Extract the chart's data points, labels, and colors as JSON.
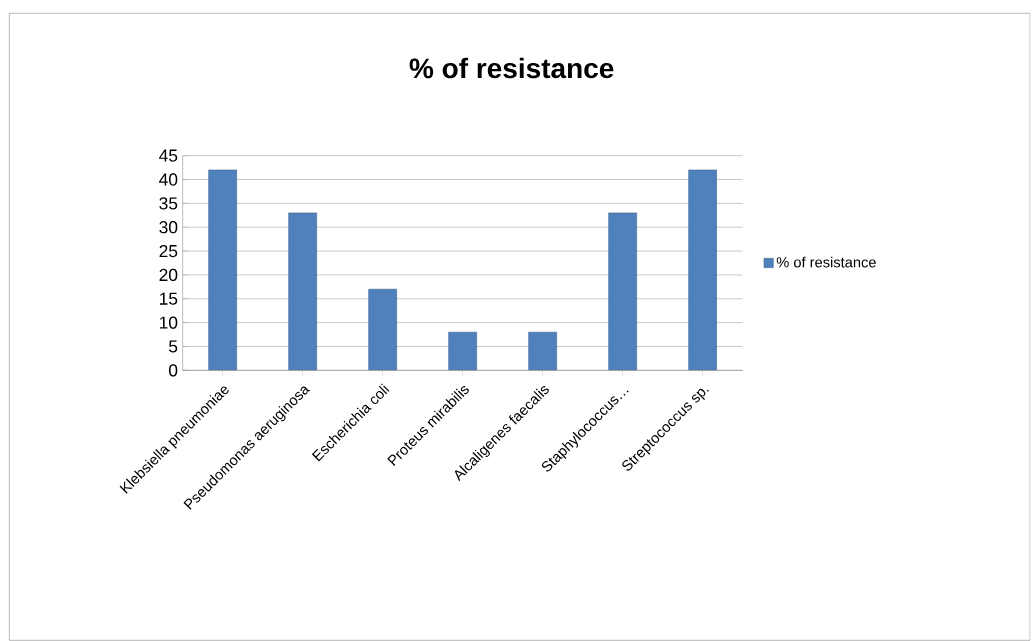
{
  "chart_data": {
    "type": "bar",
    "title": "% of resistance",
    "categories": [
      "Klebsiella pneumoniae",
      "Pseudomonas aeruginosa",
      "Escherichia coli",
      "Proteus mirabilis",
      "Alcaligenes faecalis",
      "Staphylococcus…",
      "Streptococcus sp."
    ],
    "series": [
      {
        "name": "% of resistance",
        "color": "#4f81bd",
        "values": [
          42,
          33,
          17,
          8,
          8,
          33,
          42
        ]
      }
    ],
    "ylim": [
      0,
      45
    ],
    "yticks": [
      0,
      5,
      10,
      15,
      20,
      25,
      30,
      35,
      40,
      45
    ],
    "grid": "y",
    "legend": "right"
  }
}
